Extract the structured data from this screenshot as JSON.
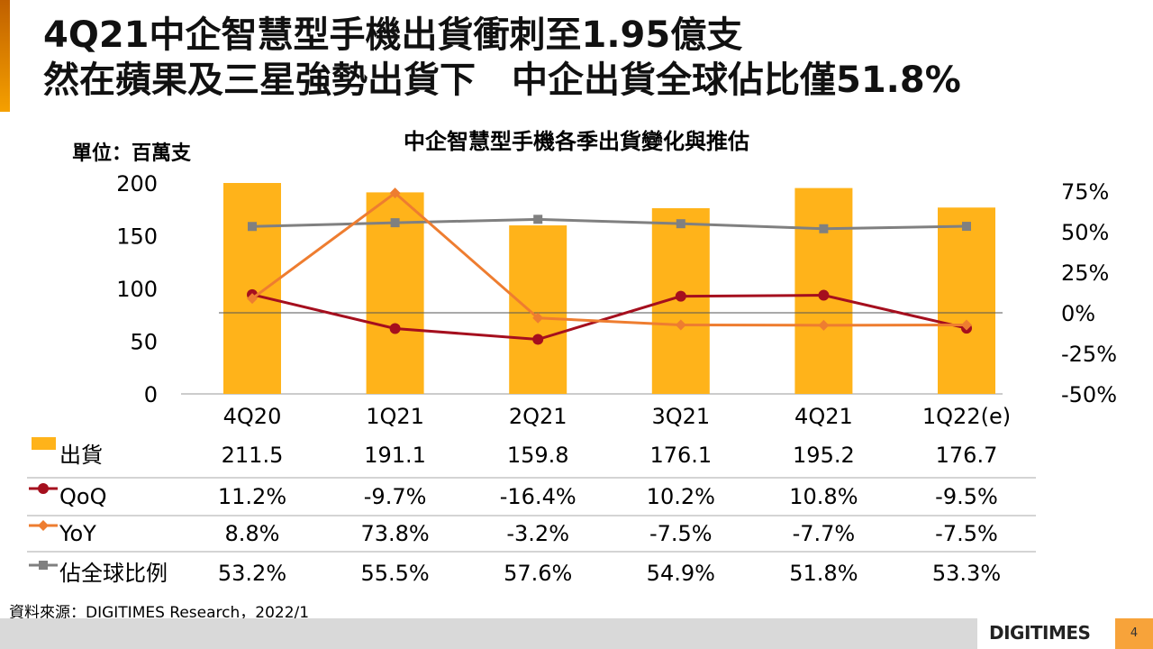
{
  "header": {
    "title_line1": "4Q21中企智慧型手機出貨衝刺至1.95億支",
    "title_line2": "然在蘋果及三星強勢出貨下　中企出貨全球佔比僅51.8%"
  },
  "unit_label": "單位：百萬支",
  "source": "資料來源：DIGITIMES Research，2022/1",
  "logo": "DIGITIMES",
  "page_number": "4",
  "colors": {
    "bar": "#ffb31a",
    "qoq": "#a50f1e",
    "yoy": "#ee7d30",
    "share": "#808080"
  },
  "chart_data": {
    "type": "bar+line",
    "title": "中企智慧型手機各季出貨變化與推估",
    "categories": [
      "4Q20",
      "1Q21",
      "2Q21",
      "3Q21",
      "4Q21",
      "1Q22(e)"
    ],
    "left_axis": {
      "ylim": [
        0,
        200
      ],
      "ticks": [
        "0",
        "50",
        "100",
        "150",
        "200"
      ]
    },
    "right_axis": {
      "ylim": [
        -50,
        75
      ],
      "ticks": [
        "-50%",
        "-25%",
        "0%",
        "25%",
        "50%",
        "75%"
      ]
    },
    "series": [
      {
        "name": "出貨",
        "type": "bar",
        "axis": "left",
        "values": [
          211.5,
          191.1,
          159.8,
          176.1,
          195.2,
          176.7
        ],
        "labels": [
          "211.5",
          "191.1",
          "159.8",
          "176.1",
          "195.2",
          "176.7"
        ]
      },
      {
        "name": "QoQ",
        "type": "line",
        "axis": "right",
        "values": [
          11.2,
          -9.7,
          -16.4,
          10.2,
          10.8,
          -9.5
        ],
        "labels": [
          "11.2%",
          "-9.7%",
          "-16.4%",
          "10.2%",
          "10.8%",
          "-9.5%"
        ]
      },
      {
        "name": "YoY",
        "type": "line",
        "axis": "right",
        "values": [
          8.8,
          73.8,
          -3.2,
          -7.5,
          -7.7,
          -7.5
        ],
        "labels": [
          "8.8%",
          "73.8%",
          "-3.2%",
          "-7.5%",
          "-7.7%",
          "-7.5%"
        ]
      },
      {
        "name": "佔全球比例",
        "type": "line",
        "axis": "right",
        "values": [
          53.2,
          55.5,
          57.6,
          54.9,
          51.8,
          53.3
        ],
        "labels": [
          "53.2%",
          "55.5%",
          "57.6%",
          "54.9%",
          "51.8%",
          "53.3%"
        ]
      }
    ]
  }
}
